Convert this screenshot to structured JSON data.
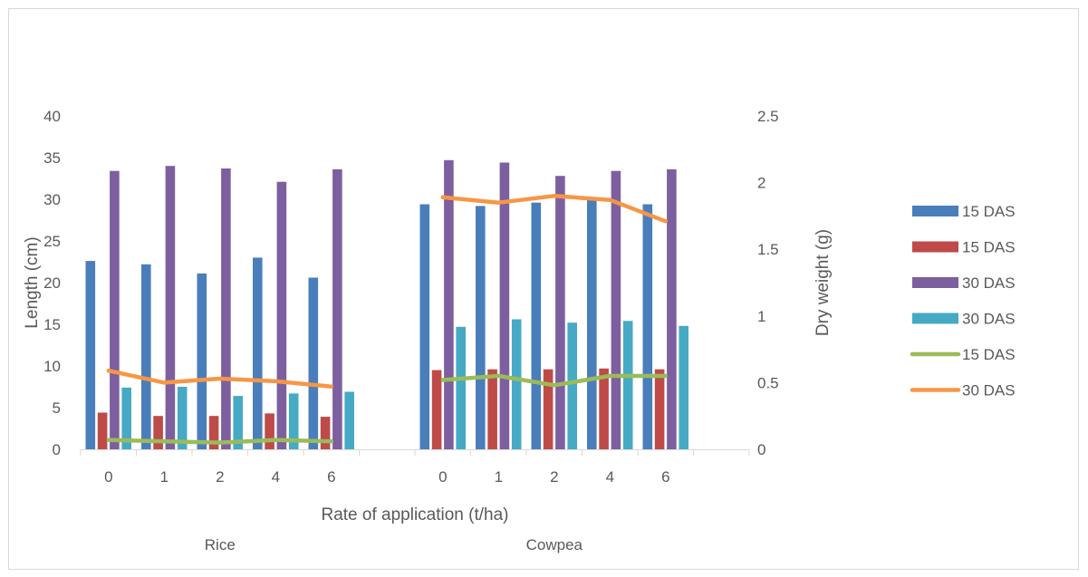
{
  "chart_data": {
    "type": "bar",
    "groups": [
      "Rice",
      "Cowpea"
    ],
    "categories": [
      "0",
      "1",
      "2",
      "4",
      "6"
    ],
    "xlabel": "Rate of application (t/ha)",
    "ylabel": "Length (cm)",
    "y2label": "Dry weight (g)",
    "ylim": [
      0,
      40
    ],
    "yticks": [
      "0",
      "5",
      "10",
      "15",
      "20",
      "25",
      "30",
      "35",
      "40"
    ],
    "y2lim": [
      0,
      2.5
    ],
    "y2ticks": [
      "0",
      "0.5",
      "1",
      "1.5",
      "2",
      "2.5"
    ],
    "grid": false,
    "legend_position": "right",
    "bar_series": [
      {
        "name": "15 DAS",
        "color": "#4a7ebb",
        "axis": "left",
        "values": [
          [
            22.6,
            22.2,
            21.1,
            23.0,
            20.6
          ],
          [
            29.4,
            29.2,
            29.6,
            29.9,
            29.4
          ]
        ]
      },
      {
        "name": "15 DAS",
        "color": "#be4b48",
        "axis": "left",
        "values": [
          [
            4.4,
            4.0,
            4.0,
            4.3,
            3.9
          ],
          [
            9.5,
            9.6,
            9.6,
            9.7,
            9.6
          ]
        ]
      },
      {
        "name": "30 DAS",
        "color": "#7d5fa0",
        "axis": "left",
        "values": [
          [
            33.4,
            34.0,
            33.7,
            32.1,
            33.6
          ],
          [
            34.7,
            34.4,
            32.8,
            33.4,
            33.6
          ]
        ]
      },
      {
        "name": "30 DAS",
        "color": "#46aac5",
        "axis": "left",
        "values": [
          [
            7.4,
            7.5,
            6.4,
            6.7,
            6.9
          ],
          [
            14.7,
            15.6,
            15.2,
            15.4,
            14.8
          ]
        ]
      }
    ],
    "line_series": [
      {
        "name": "15 DAS",
        "color": "#9bbb59",
        "axis": "right",
        "values": [
          [
            0.07,
            0.06,
            0.05,
            0.07,
            0.06
          ],
          [
            0.52,
            0.55,
            0.48,
            0.55,
            0.55
          ]
        ]
      },
      {
        "name": "30 DAS",
        "color": "#f79646",
        "axis": "right",
        "values": [
          [
            0.59,
            0.5,
            0.53,
            0.51,
            0.47
          ],
          [
            1.89,
            1.85,
            1.9,
            1.87,
            1.71
          ]
        ]
      }
    ]
  }
}
